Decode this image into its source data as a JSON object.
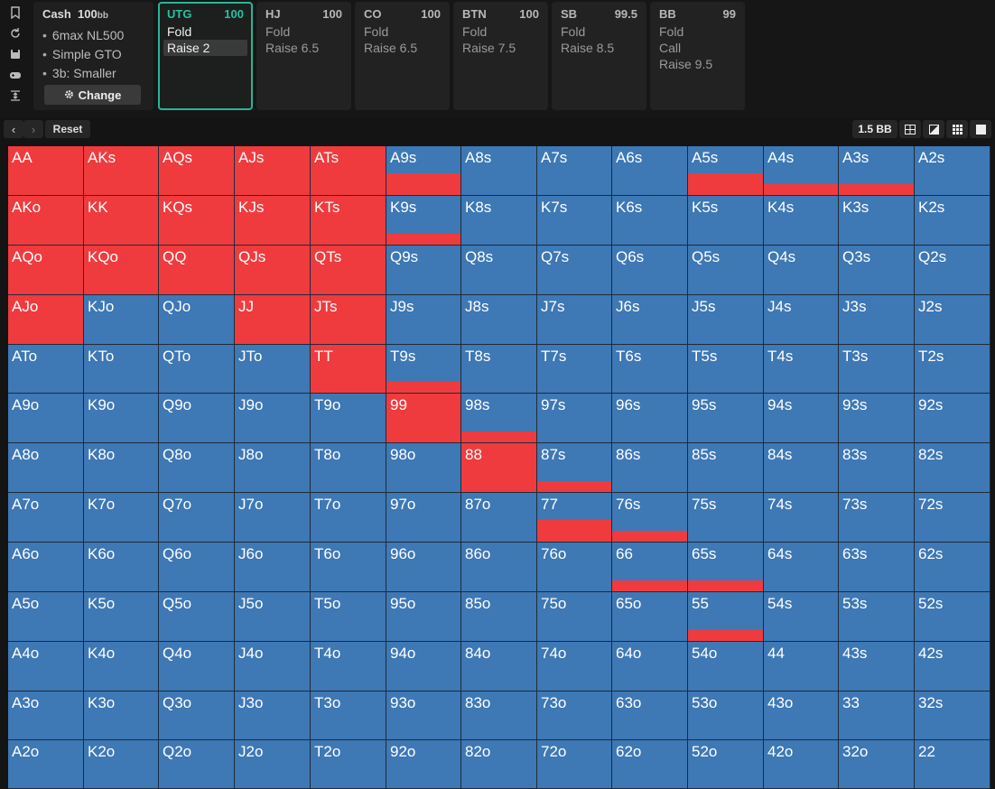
{
  "toolbar_icons": [
    "bookmark-icon",
    "refresh-icon",
    "save-icon",
    "gamepad-icon",
    "collapse-icon"
  ],
  "cash": {
    "title": "Cash",
    "stack": "100",
    "unit": "bb",
    "items": [
      "6max NL500",
      "Simple GTO",
      "3b: Smaller"
    ],
    "change_label": "Change"
  },
  "positions": [
    {
      "name": "UTG",
      "stack": "100",
      "actions": [
        "Fold",
        "Raise 2"
      ],
      "active": true,
      "selected": 1
    },
    {
      "name": "HJ",
      "stack": "100",
      "actions": [
        "Fold",
        "Raise 6.5"
      ]
    },
    {
      "name": "CO",
      "stack": "100",
      "actions": [
        "Fold",
        "Raise 6.5"
      ]
    },
    {
      "name": "BTN",
      "stack": "100",
      "actions": [
        "Fold",
        "Raise 7.5"
      ]
    },
    {
      "name": "SB",
      "stack": "99.5",
      "actions": [
        "Fold",
        "Raise 8.5"
      ]
    },
    {
      "name": "BB",
      "stack": "99",
      "actions": [
        "Fold",
        "Call",
        "Raise 9.5"
      ]
    }
  ],
  "nav": {
    "back": "‹",
    "forward": "›",
    "reset": "Reset"
  },
  "view": {
    "bb_label": "1.5 BB"
  },
  "colors": {
    "raise": "#ef3b3e",
    "fold": "#3e78b5",
    "accent": "#26b59a"
  },
  "grid": {
    "hands": [
      [
        "AA",
        "AKs",
        "AQs",
        "AJs",
        "ATs",
        "A9s",
        "A8s",
        "A7s",
        "A6s",
        "A5s",
        "A4s",
        "A3s",
        "A2s"
      ],
      [
        "AKo",
        "KK",
        "KQs",
        "KJs",
        "KTs",
        "K9s",
        "K8s",
        "K7s",
        "K6s",
        "K5s",
        "K4s",
        "K3s",
        "K2s"
      ],
      [
        "AQo",
        "KQo",
        "QQ",
        "QJs",
        "QTs",
        "Q9s",
        "Q8s",
        "Q7s",
        "Q6s",
        "Q5s",
        "Q4s",
        "Q3s",
        "Q2s"
      ],
      [
        "AJo",
        "KJo",
        "QJo",
        "JJ",
        "JTs",
        "J9s",
        "J8s",
        "J7s",
        "J6s",
        "J5s",
        "J4s",
        "J3s",
        "J2s"
      ],
      [
        "ATo",
        "KTo",
        "QTo",
        "JTo",
        "TT",
        "T9s",
        "T8s",
        "T7s",
        "T6s",
        "T5s",
        "T4s",
        "T3s",
        "T2s"
      ],
      [
        "A9o",
        "K9o",
        "Q9o",
        "J9o",
        "T9o",
        "99",
        "98s",
        "97s",
        "96s",
        "95s",
        "94s",
        "93s",
        "92s"
      ],
      [
        "A8o",
        "K8o",
        "Q8o",
        "J8o",
        "T8o",
        "98o",
        "88",
        "87s",
        "86s",
        "85s",
        "84s",
        "83s",
        "82s"
      ],
      [
        "A7o",
        "K7o",
        "Q7o",
        "J7o",
        "T7o",
        "97o",
        "87o",
        "77",
        "76s",
        "75s",
        "74s",
        "73s",
        "72s"
      ],
      [
        "A6o",
        "K6o",
        "Q6o",
        "J6o",
        "T6o",
        "96o",
        "86o",
        "76o",
        "66",
        "65s",
        "64s",
        "63s",
        "62s"
      ],
      [
        "A5o",
        "K5o",
        "Q5o",
        "J5o",
        "T5o",
        "95o",
        "85o",
        "75o",
        "65o",
        "55",
        "54s",
        "53s",
        "52s"
      ],
      [
        "A4o",
        "K4o",
        "Q4o",
        "J4o",
        "T4o",
        "94o",
        "84o",
        "74o",
        "64o",
        "54o",
        "44",
        "43s",
        "42s"
      ],
      [
        "A3o",
        "K3o",
        "Q3o",
        "J3o",
        "T3o",
        "93o",
        "83o",
        "73o",
        "63o",
        "53o",
        "43o",
        "33",
        "32s"
      ],
      [
        "A2o",
        "K2o",
        "Q2o",
        "J2o",
        "T2o",
        "92o",
        "82o",
        "72o",
        "62o",
        "52o",
        "42o",
        "32o",
        "22"
      ]
    ],
    "raise_freq": [
      [
        1,
        1,
        1,
        1,
        1,
        0.45,
        0,
        0,
        0,
        0.45,
        0.22,
        0.22,
        0
      ],
      [
        1,
        1,
        1,
        1,
        1,
        0.22,
        0,
        0,
        0,
        0,
        0,
        0,
        0
      ],
      [
        1,
        1,
        1,
        1,
        1,
        0,
        0,
        0,
        0,
        0,
        0,
        0,
        0
      ],
      [
        1,
        0,
        0,
        1,
        1,
        0,
        0,
        0,
        0,
        0,
        0,
        0,
        0
      ],
      [
        0,
        0,
        0,
        0,
        1,
        0.22,
        0,
        0,
        0,
        0,
        0,
        0,
        0
      ],
      [
        0,
        0,
        0,
        0,
        0,
        1,
        0.22,
        0,
        0,
        0,
        0,
        0,
        0
      ],
      [
        0,
        0,
        0,
        0,
        0,
        0,
        1,
        0.22,
        0,
        0,
        0,
        0,
        0
      ],
      [
        0,
        0,
        0,
        0,
        0,
        0,
        0,
        0.45,
        0.22,
        0,
        0,
        0,
        0
      ],
      [
        0,
        0,
        0,
        0,
        0,
        0,
        0,
        0,
        0.22,
        0.22,
        0,
        0,
        0
      ],
      [
        0,
        0,
        0,
        0,
        0,
        0,
        0,
        0,
        0,
        0.22,
        0,
        0,
        0
      ],
      [
        0,
        0,
        0,
        0,
        0,
        0,
        0,
        0,
        0,
        0,
        0,
        0,
        0
      ],
      [
        0,
        0,
        0,
        0,
        0,
        0,
        0,
        0,
        0,
        0,
        0,
        0,
        0
      ],
      [
        0,
        0,
        0,
        0,
        0,
        0,
        0,
        0,
        0,
        0,
        0,
        0,
        0
      ]
    ]
  }
}
